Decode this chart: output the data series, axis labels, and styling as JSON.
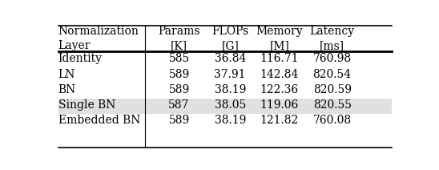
{
  "col_headers": [
    "Normalization\nLayer",
    "Params\n[K]",
    "FLOPs\n[G]",
    "Memory\n[M]",
    "Latency\n[ms]"
  ],
  "rows": [
    [
      "Identity",
      "585",
      "36.84",
      "116.71",
      "760.98"
    ],
    [
      "LN",
      "589",
      "37.91",
      "142.84",
      "820.54"
    ],
    [
      "BN",
      "589",
      "38.19",
      "122.36",
      "820.59"
    ],
    [
      "Single BN",
      "587",
      "38.05",
      "119.06",
      "820.55"
    ],
    [
      "Embedded BN",
      "589",
      "38.19",
      "121.82",
      "760.08"
    ]
  ],
  "highlight_last_row": true,
  "highlight_color": "#e0e0e0",
  "background_color": "#ffffff",
  "col_aligns": [
    "left",
    "center",
    "center",
    "center",
    "center"
  ],
  "font_size": 10,
  "header_font_size": 10
}
